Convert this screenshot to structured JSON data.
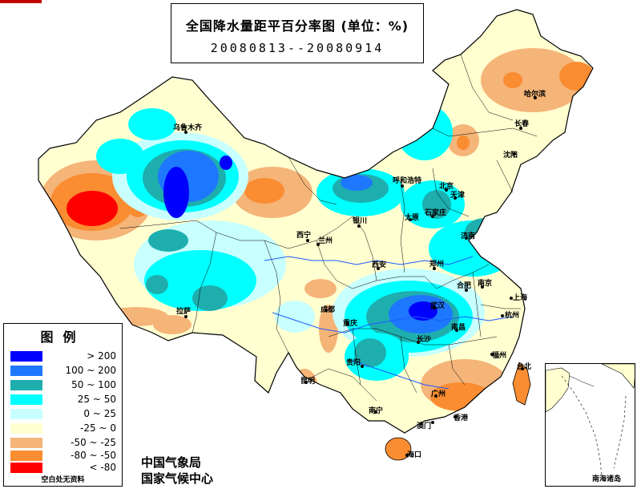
{
  "title": {
    "main": "全国降水量距平百分率图 (单位：%)",
    "date_range": "20080813--20080914"
  },
  "legend": {
    "title": "图例",
    "items": [
      {
        "label": "> 200",
        "color": "#0000ff"
      },
      {
        "label": "100 ~ 200",
        "color": "#1e78ff"
      },
      {
        "label": "50 ~ 100",
        "color": "#1eaeae"
      },
      {
        "label": "25 ~ 50",
        "color": "#00ffff"
      },
      {
        "label": "0 ~ 25",
        "color": "#c8ffff"
      },
      {
        "label": "-25 ~ 0",
        "color": "#ffffd0"
      },
      {
        "label": "-50 ~ -25",
        "color": "#f5b478"
      },
      {
        "label": "-80 ~ -50",
        "color": "#fa8c32"
      },
      {
        "label": "< -80",
        "color": "#ff0000"
      }
    ],
    "note": "空白处无资料"
  },
  "agency": {
    "line1": "中国气象局",
    "line2": "国家气候中心"
  },
  "inset": {
    "label": "南海诸岛"
  },
  "cities": [
    {
      "name": "乌鲁木齐"
    },
    {
      "name": "拉萨"
    },
    {
      "name": "西宁"
    },
    {
      "name": "兰州"
    },
    {
      "name": "银川"
    },
    {
      "name": "呼和浩特"
    },
    {
      "name": "北京"
    },
    {
      "name": "天津"
    },
    {
      "name": "太原"
    },
    {
      "name": "石家庄"
    },
    {
      "name": "济南"
    },
    {
      "name": "郑州"
    },
    {
      "name": "西安"
    },
    {
      "name": "成都"
    },
    {
      "name": "重庆"
    },
    {
      "name": "武汉"
    },
    {
      "name": "合肥"
    },
    {
      "name": "南京"
    },
    {
      "name": "上海"
    },
    {
      "name": "杭州"
    },
    {
      "name": "长沙"
    },
    {
      "name": "南昌"
    },
    {
      "name": "福州"
    },
    {
      "name": "台北"
    },
    {
      "name": "贵阳"
    },
    {
      "name": "昆明"
    },
    {
      "name": "南宁"
    },
    {
      "name": "广州"
    },
    {
      "name": "香港"
    },
    {
      "name": "澳门"
    },
    {
      "name": "海口"
    },
    {
      "name": "沈阳"
    },
    {
      "name": "长春"
    },
    {
      "name": "哈尔滨"
    }
  ]
}
